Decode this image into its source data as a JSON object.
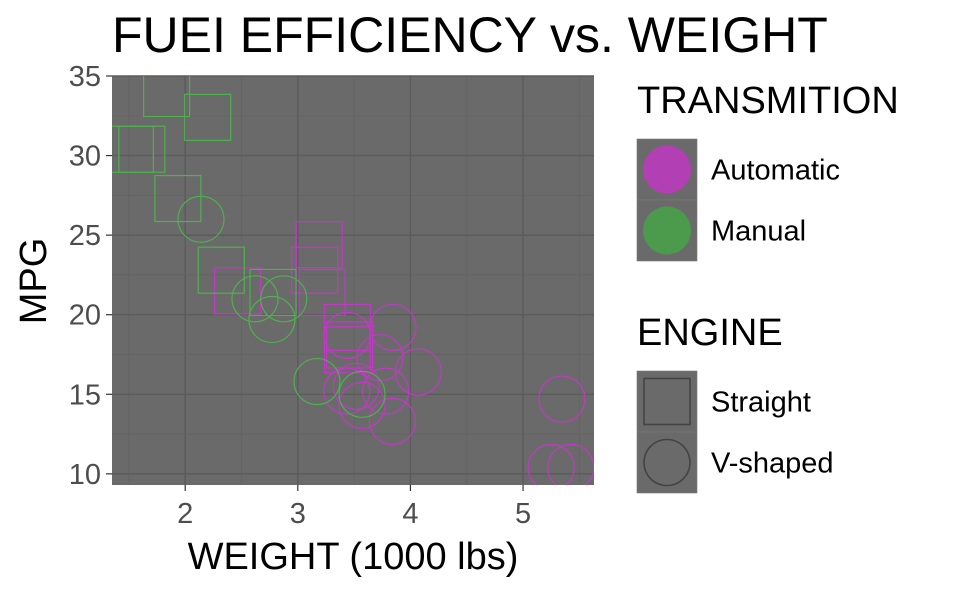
{
  "chart_data": {
    "type": "scatter",
    "title": "FUEI EFFICIENCY vs. WEIGHT",
    "xlabel": "WEIGHT (1000 lbs)",
    "ylabel": "MPG",
    "xlim": [
      1.35,
      5.63
    ],
    "ylim": [
      9.3,
      35.0
    ],
    "xticks": [
      2,
      3,
      4,
      5
    ],
    "yticks": [
      10,
      15,
      20,
      25,
      30,
      35
    ],
    "grid": true,
    "panel_color": "#6a6a6a",
    "legend_position": "right",
    "legends": [
      {
        "title": "TRANSMITION",
        "kind": "color",
        "entries": [
          {
            "label": "Automatic",
            "color": "#b23fb4"
          },
          {
            "label": "Manual",
            "color": "#4c9a4c"
          }
        ]
      },
      {
        "title": "ENGINE",
        "kind": "shape",
        "entries": [
          {
            "label": "Straight",
            "shape": "square"
          },
          {
            "label": "V-shaped",
            "shape": "circle"
          }
        ]
      }
    ],
    "series": [
      {
        "name": "Automatic",
        "color": "#c03ac4",
        "points": [
          {
            "x": 3.215,
            "y": 21.4,
            "shape": "square"
          },
          {
            "x": 3.46,
            "y": 18.1,
            "shape": "square"
          },
          {
            "x": 3.19,
            "y": 24.4,
            "shape": "square"
          },
          {
            "x": 3.15,
            "y": 22.8,
            "shape": "square"
          },
          {
            "x": 3.44,
            "y": 19.2,
            "shape": "square"
          },
          {
            "x": 3.44,
            "y": 17.8,
            "shape": "square"
          },
          {
            "x": 2.465,
            "y": 21.5,
            "shape": "square"
          },
          {
            "x": 3.44,
            "y": 18.7,
            "shape": "circle"
          },
          {
            "x": 3.57,
            "y": 14.3,
            "shape": "circle"
          },
          {
            "x": 4.07,
            "y": 16.4,
            "shape": "circle"
          },
          {
            "x": 3.73,
            "y": 17.3,
            "shape": "circle"
          },
          {
            "x": 3.78,
            "y": 15.2,
            "shape": "circle"
          },
          {
            "x": 5.25,
            "y": 10.4,
            "shape": "circle"
          },
          {
            "x": 5.424,
            "y": 10.4,
            "shape": "circle"
          },
          {
            "x": 5.345,
            "y": 14.7,
            "shape": "circle"
          },
          {
            "x": 3.52,
            "y": 15.5,
            "shape": "circle"
          },
          {
            "x": 3.435,
            "y": 15.2,
            "shape": "circle"
          },
          {
            "x": 3.84,
            "y": 13.3,
            "shape": "circle"
          },
          {
            "x": 3.845,
            "y": 19.2,
            "shape": "circle"
          }
        ]
      },
      {
        "name": "Manual",
        "color": "#4fb04f",
        "points": [
          {
            "x": 2.32,
            "y": 22.8,
            "shape": "square"
          },
          {
            "x": 2.2,
            "y": 32.4,
            "shape": "square"
          },
          {
            "x": 1.615,
            "y": 30.4,
            "shape": "square"
          },
          {
            "x": 1.835,
            "y": 33.9,
            "shape": "square"
          },
          {
            "x": 1.935,
            "y": 27.3,
            "shape": "square"
          },
          {
            "x": 1.513,
            "y": 30.4,
            "shape": "square"
          },
          {
            "x": 2.78,
            "y": 21.4,
            "shape": "square"
          },
          {
            "x": 2.62,
            "y": 21.0,
            "shape": "circle"
          },
          {
            "x": 2.875,
            "y": 21.0,
            "shape": "circle"
          },
          {
            "x": 2.14,
            "y": 26.0,
            "shape": "circle"
          },
          {
            "x": 3.17,
            "y": 15.8,
            "shape": "circle"
          },
          {
            "x": 2.77,
            "y": 19.7,
            "shape": "circle"
          },
          {
            "x": 3.57,
            "y": 15.0,
            "shape": "circle"
          }
        ]
      }
    ]
  }
}
